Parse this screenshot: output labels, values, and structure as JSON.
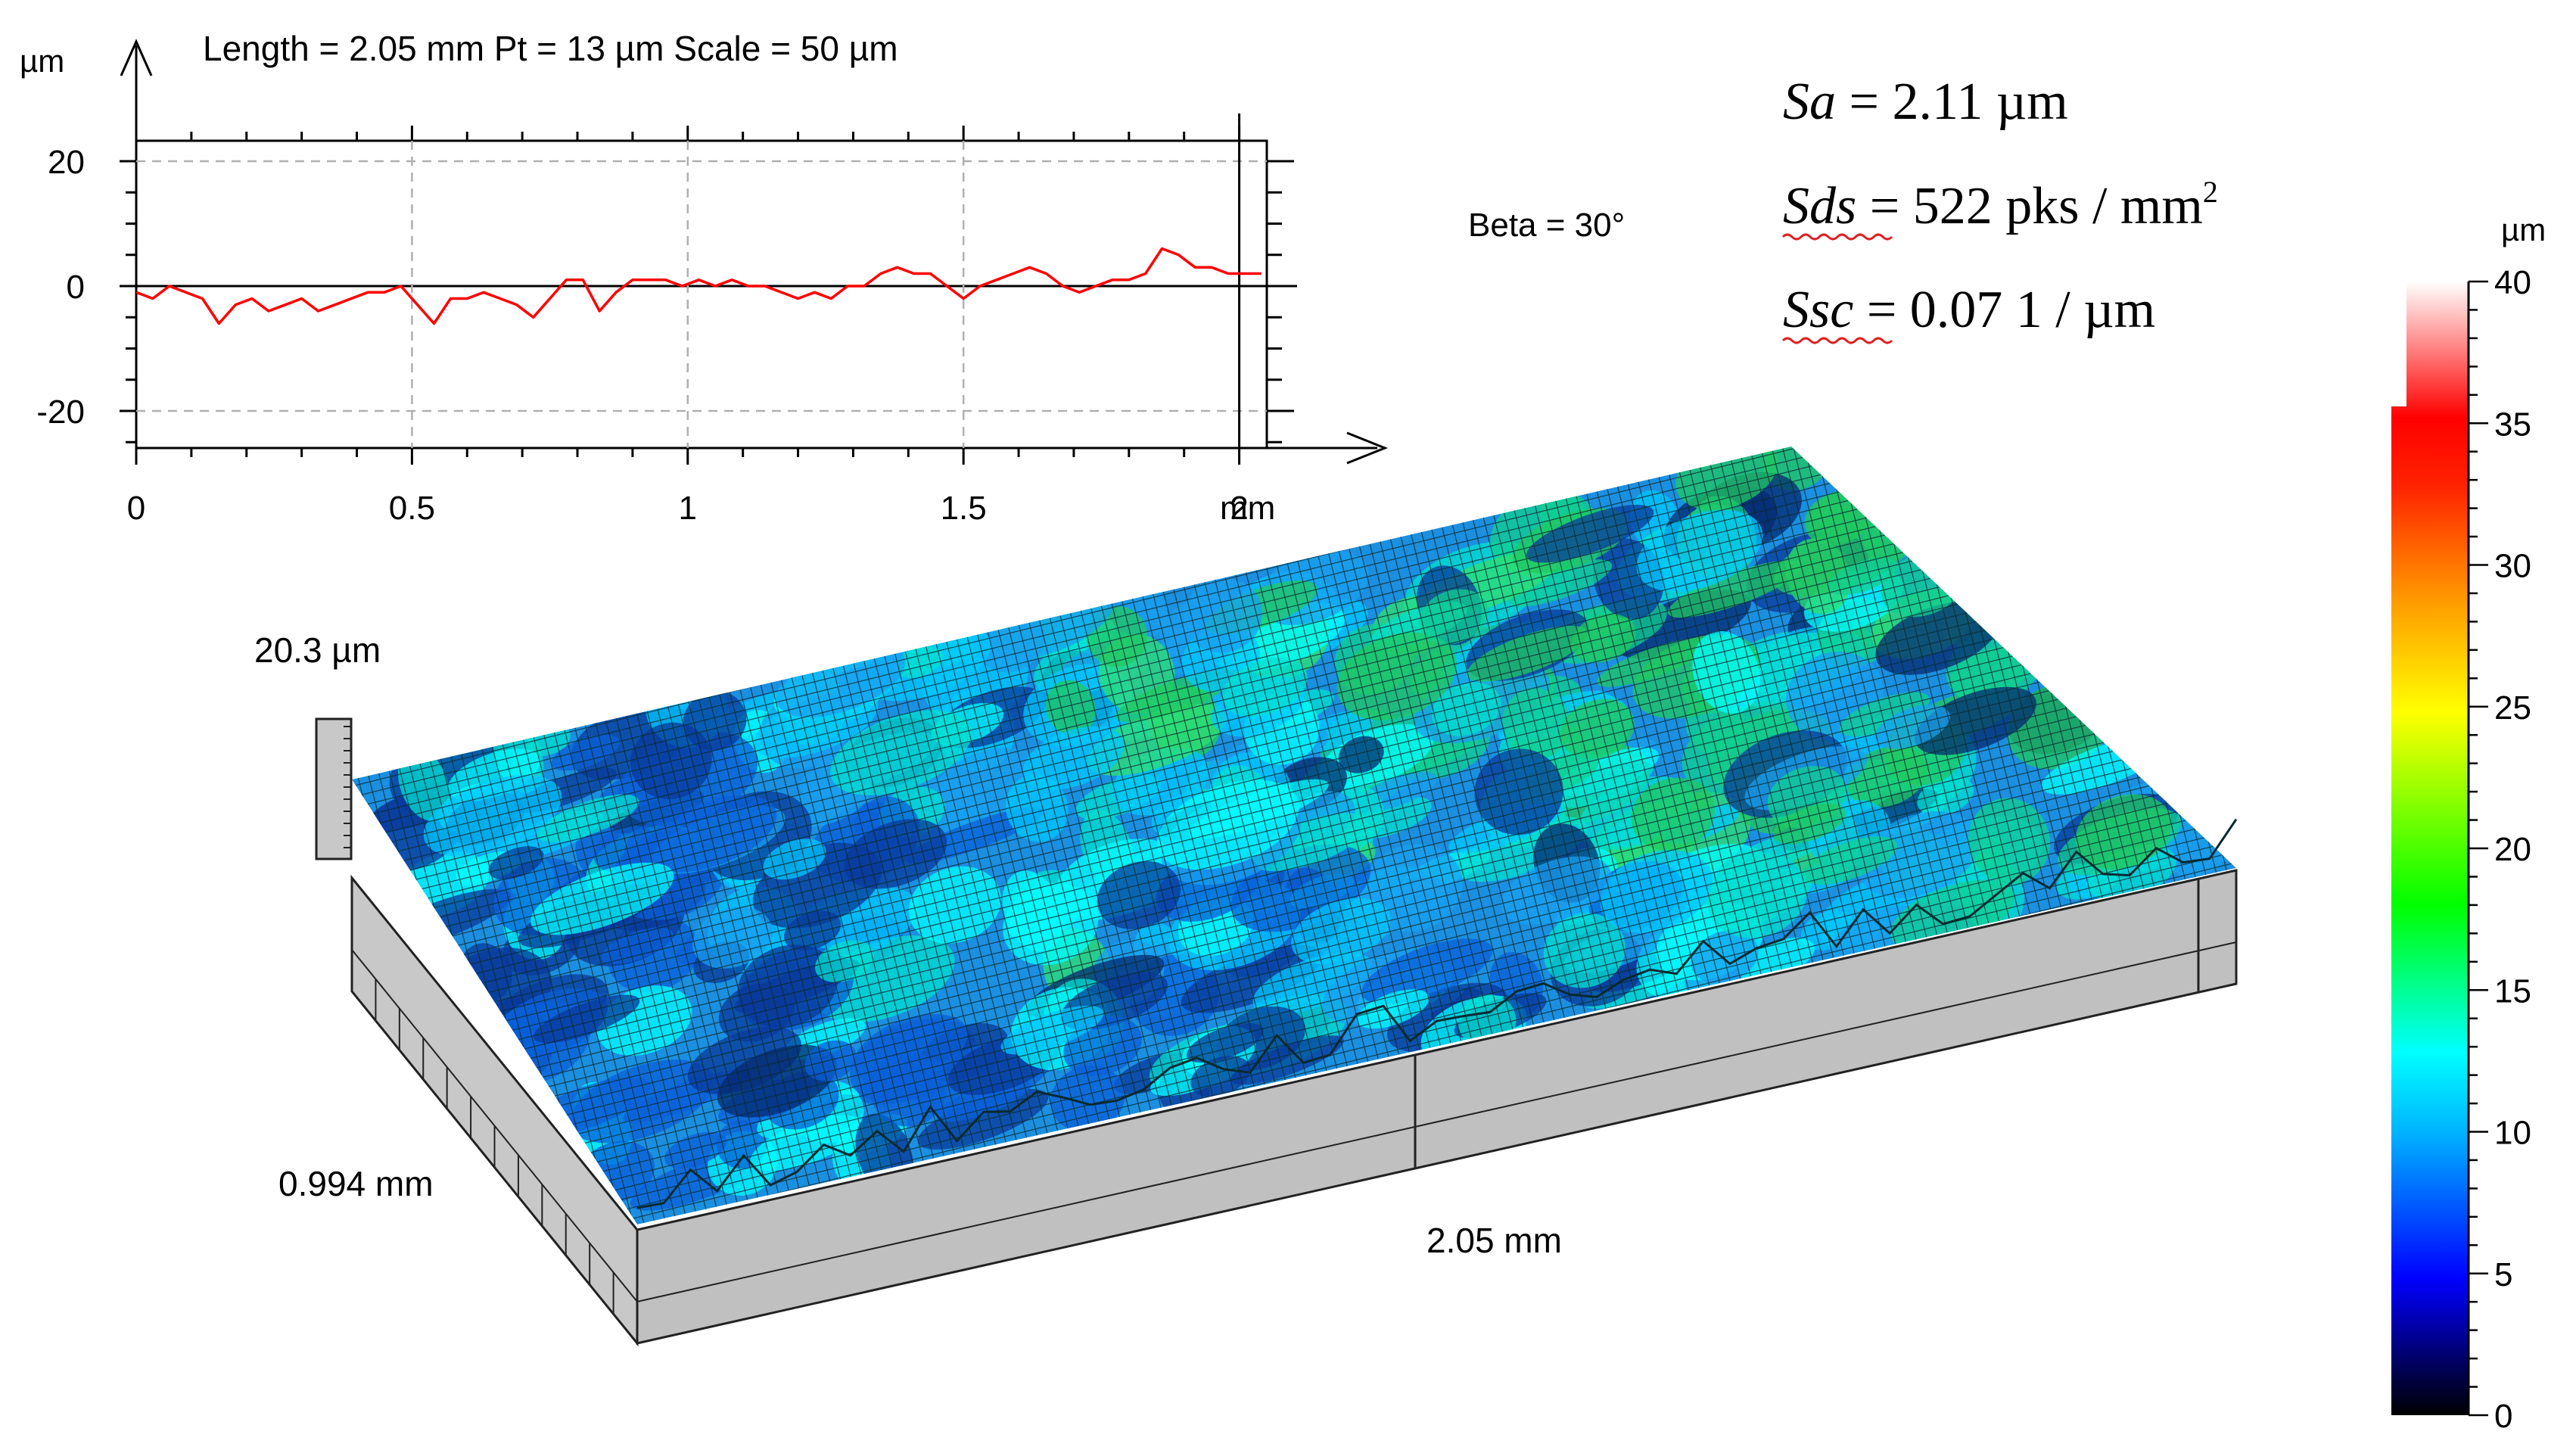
{
  "profile": {
    "header": "Length = 2.05 mm  Pt = 13 µm  Scale = 50 µm",
    "y_unit": "µm",
    "x_unit": "mm",
    "y_ticks": [
      "20",
      "0",
      "-20"
    ],
    "x_ticks": [
      "0",
      "0.5",
      "1",
      "1.5",
      "2"
    ],
    "line_color": "#ff0000",
    "grid": "dashed gray"
  },
  "chart_data": [
    {
      "type": "line",
      "title": "Length = 2.05 mm  Pt = 13 µm  Scale = 50 µm",
      "xlabel": "mm",
      "ylabel": "µm",
      "xlim": [
        0,
        2.05
      ],
      "ylim": [
        -26,
        24
      ],
      "grid": true,
      "series": [
        {
          "color": "#ff0000",
          "x": [
            0,
            0.03,
            0.06,
            0.09,
            0.12,
            0.15,
            0.18,
            0.21,
            0.24,
            0.27,
            0.3,
            0.33,
            0.36,
            0.39,
            0.42,
            0.45,
            0.48,
            0.51,
            0.54,
            0.57,
            0.6,
            0.63,
            0.66,
            0.69,
            0.72,
            0.75,
            0.78,
            0.81,
            0.84,
            0.87,
            0.9,
            0.93,
            0.96,
            0.99,
            1.02,
            1.05,
            1.08,
            1.11,
            1.14,
            1.17,
            1.2,
            1.23,
            1.26,
            1.29,
            1.32,
            1.35,
            1.38,
            1.41,
            1.44,
            1.47,
            1.5,
            1.53,
            1.56,
            1.59,
            1.62,
            1.65,
            1.68,
            1.71,
            1.74,
            1.77,
            1.8,
            1.83,
            1.86,
            1.89,
            1.92,
            1.95,
            1.98,
            2.01,
            2.04
          ],
          "y": [
            -1,
            -2,
            0,
            -1,
            -2,
            -6,
            -3,
            -2,
            -4,
            -3,
            -2,
            -4,
            -3,
            -2,
            -1,
            -1,
            0,
            -3,
            -6,
            -2,
            -2,
            -1,
            -2,
            -3,
            -5,
            -2,
            1,
            1,
            -4,
            -1,
            1,
            1,
            1,
            0,
            1,
            0,
            1,
            0,
            0,
            -1,
            -2,
            -1,
            -2,
            0,
            0,
            2,
            3,
            2,
            2,
            0,
            -2,
            0,
            1,
            2,
            3,
            2,
            0,
            -1,
            0,
            1,
            1,
            2,
            6,
            5,
            3,
            3,
            2,
            2,
            2
          ]
        }
      ]
    },
    {
      "type": "surface-3d",
      "z_height_label": "20.3 µm",
      "width_label": "0.994 mm",
      "length_label": "2.05 mm",
      "view_label": "Beta = 30°"
    },
    {
      "type": "colorbar",
      "unit": "µm",
      "ticks": [
        "40",
        "35",
        "30",
        "25",
        "20",
        "15",
        "10",
        "5",
        "0"
      ],
      "range": [
        0,
        40
      ],
      "stops": [
        "#000000",
        "#0000ff",
        "#00b4ff",
        "#00ffff",
        "#00ff00",
        "#ffff00",
        "#ff9900",
        "#ff2200",
        "#ff0000",
        "#ffffff"
      ]
    }
  ],
  "params": {
    "sa": {
      "symbol": "Sa",
      "text": " = 2.11 µm"
    },
    "sds": {
      "symbol": "Sds",
      "text": " = 522 pks / mm",
      "sup": "2"
    },
    "ssc": {
      "symbol": "Ssc",
      "text": " = 0.07 1 / µm"
    }
  },
  "surface": {
    "view_label": "Beta = 30°",
    "z_height_label": "20.3 µm",
    "width_label": "0.994 mm",
    "length_label": "2.05 mm",
    "face_color": "#c0c0c0"
  },
  "colorbar": {
    "unit": "µm",
    "ticks": [
      "40",
      "35",
      "30",
      "25",
      "20",
      "15",
      "10",
      "5",
      "0"
    ]
  }
}
